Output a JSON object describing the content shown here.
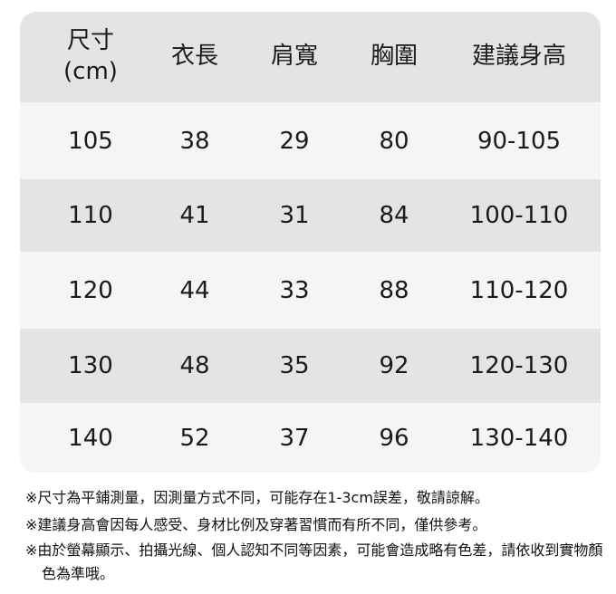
{
  "table": {
    "headers": [
      {
        "line1": "尺寸",
        "line2": "(cm)"
      },
      {
        "line1": "衣長"
      },
      {
        "line1": "肩寬"
      },
      {
        "line1": "胸圍"
      },
      {
        "line1": "建議身高"
      }
    ],
    "rows": [
      [
        "105",
        "38",
        "29",
        "80",
        "90-105"
      ],
      [
        "110",
        "41",
        "31",
        "84",
        "100-110"
      ],
      [
        "120",
        "44",
        "33",
        "88",
        "110-120"
      ],
      [
        "130",
        "48",
        "35",
        "92",
        "120-130"
      ],
      [
        "140",
        "52",
        "37",
        "96",
        "130-140"
      ]
    ]
  },
  "notes": [
    "※尺寸為平鋪測量，因測量方式不同，可能存在1-3cm誤差，敬請諒解。",
    "※建議身高會因每人感受、身材比例及穿著習慣而有所不同，僅供參考。",
    "※由於螢幕顯示、拍攝光線、個人認知不同等因素，可能會造成略有色差，請依收到實物顏色為準哦。"
  ],
  "colors": {
    "header_bg": "#e4e4e4",
    "row_light": "#f5f5f5",
    "row_dark": "#e4e4e4",
    "text": "#1a1a1a"
  }
}
